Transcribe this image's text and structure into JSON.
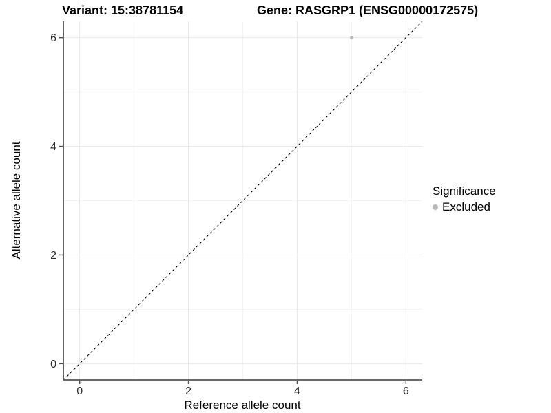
{
  "header": {
    "variant_title": "Variant: 15:38781154",
    "gene_title": "Gene: RASGRP1 (ENSG00000172575)"
  },
  "axes": {
    "x_label": "Reference allele count",
    "y_label": "Alternative allele count"
  },
  "legend": {
    "title": "Significance",
    "items": [
      {
        "label": "Excluded",
        "color": "#b9b9b9"
      }
    ]
  },
  "colors": {
    "background": "#ffffff",
    "grid_major": "#e8e8e8",
    "grid_minor": "#f3f3f3",
    "axis_line": "#555555",
    "tick_mark": "#4a4a4a",
    "tick_text": "#2b2b2b",
    "reference_line": "#000000",
    "point_excluded": "#b9b9b9"
  },
  "chart_data": {
    "type": "scatter",
    "title": "Variant: 15:38781154   Gene: RASGRP1 (ENSG00000172575)",
    "xlabel": "Reference allele count",
    "ylabel": "Alternative allele count",
    "xlim": [
      -0.3,
      6.3
    ],
    "ylim": [
      -0.3,
      6.3
    ],
    "x_major_ticks": [
      0,
      2,
      4,
      6
    ],
    "y_major_ticks": [
      0,
      2,
      4,
      6
    ],
    "x_minor_gridlines": [
      1,
      3,
      5
    ],
    "y_minor_gridlines": [
      1,
      3,
      5
    ],
    "grid": true,
    "legend_position": "right",
    "series": [
      {
        "name": "Excluded",
        "color": "#b9b9b9",
        "points": [
          {
            "x": 5,
            "y": 6
          }
        ]
      }
    ],
    "reference_line": {
      "slope": 1,
      "intercept": 0,
      "style": "dashed",
      "color": "#000000"
    }
  }
}
